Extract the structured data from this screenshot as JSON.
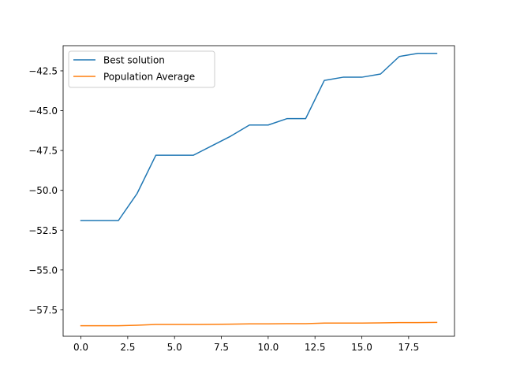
{
  "chart_data": {
    "type": "line",
    "title": "",
    "xlabel": "",
    "ylabel": "",
    "xlim": [
      -0.95,
      19.95
    ],
    "ylim": [
      -59.16,
      -40.92
    ],
    "grid": false,
    "legend_placement": "top-left",
    "x": [
      0,
      1,
      2,
      3,
      4,
      5,
      6,
      7,
      8,
      9,
      10,
      11,
      12,
      13,
      14,
      15,
      16,
      17,
      18,
      19
    ],
    "x_ticks": [
      0.0,
      2.5,
      5.0,
      7.5,
      10.0,
      12.5,
      15.0,
      17.5
    ],
    "x_tick_labels": [
      "0.0",
      "2.5",
      "5.0",
      "7.5",
      "10.0",
      "12.5",
      "15.0",
      "17.5"
    ],
    "y_ticks": [
      -57.5,
      -55.0,
      -52.5,
      -50.0,
      -47.5,
      -45.0,
      -42.5
    ],
    "y_tick_labels": [
      "−57.5",
      "−55.0",
      "−52.5",
      "−50.0",
      "−47.5",
      "−45.0",
      "−42.5"
    ],
    "series": [
      {
        "name": "Best solution",
        "color": "#1f77b4",
        "values": [
          -51.9,
          -51.9,
          -51.9,
          -50.2,
          -47.8,
          -47.8,
          -47.8,
          -47.2,
          -46.6,
          -45.9,
          -45.9,
          -45.5,
          -45.5,
          -43.1,
          -42.9,
          -42.9,
          -42.7,
          -41.6,
          -41.4,
          -41.4
        ]
      },
      {
        "name": "Population Average",
        "color": "#ff7f0e",
        "values": [
          -58.5,
          -58.5,
          -58.5,
          -58.47,
          -58.42,
          -58.42,
          -58.42,
          -58.41,
          -58.4,
          -58.38,
          -58.38,
          -58.37,
          -58.37,
          -58.33,
          -58.33,
          -58.33,
          -58.32,
          -58.3,
          -58.3,
          -58.29
        ]
      }
    ]
  }
}
